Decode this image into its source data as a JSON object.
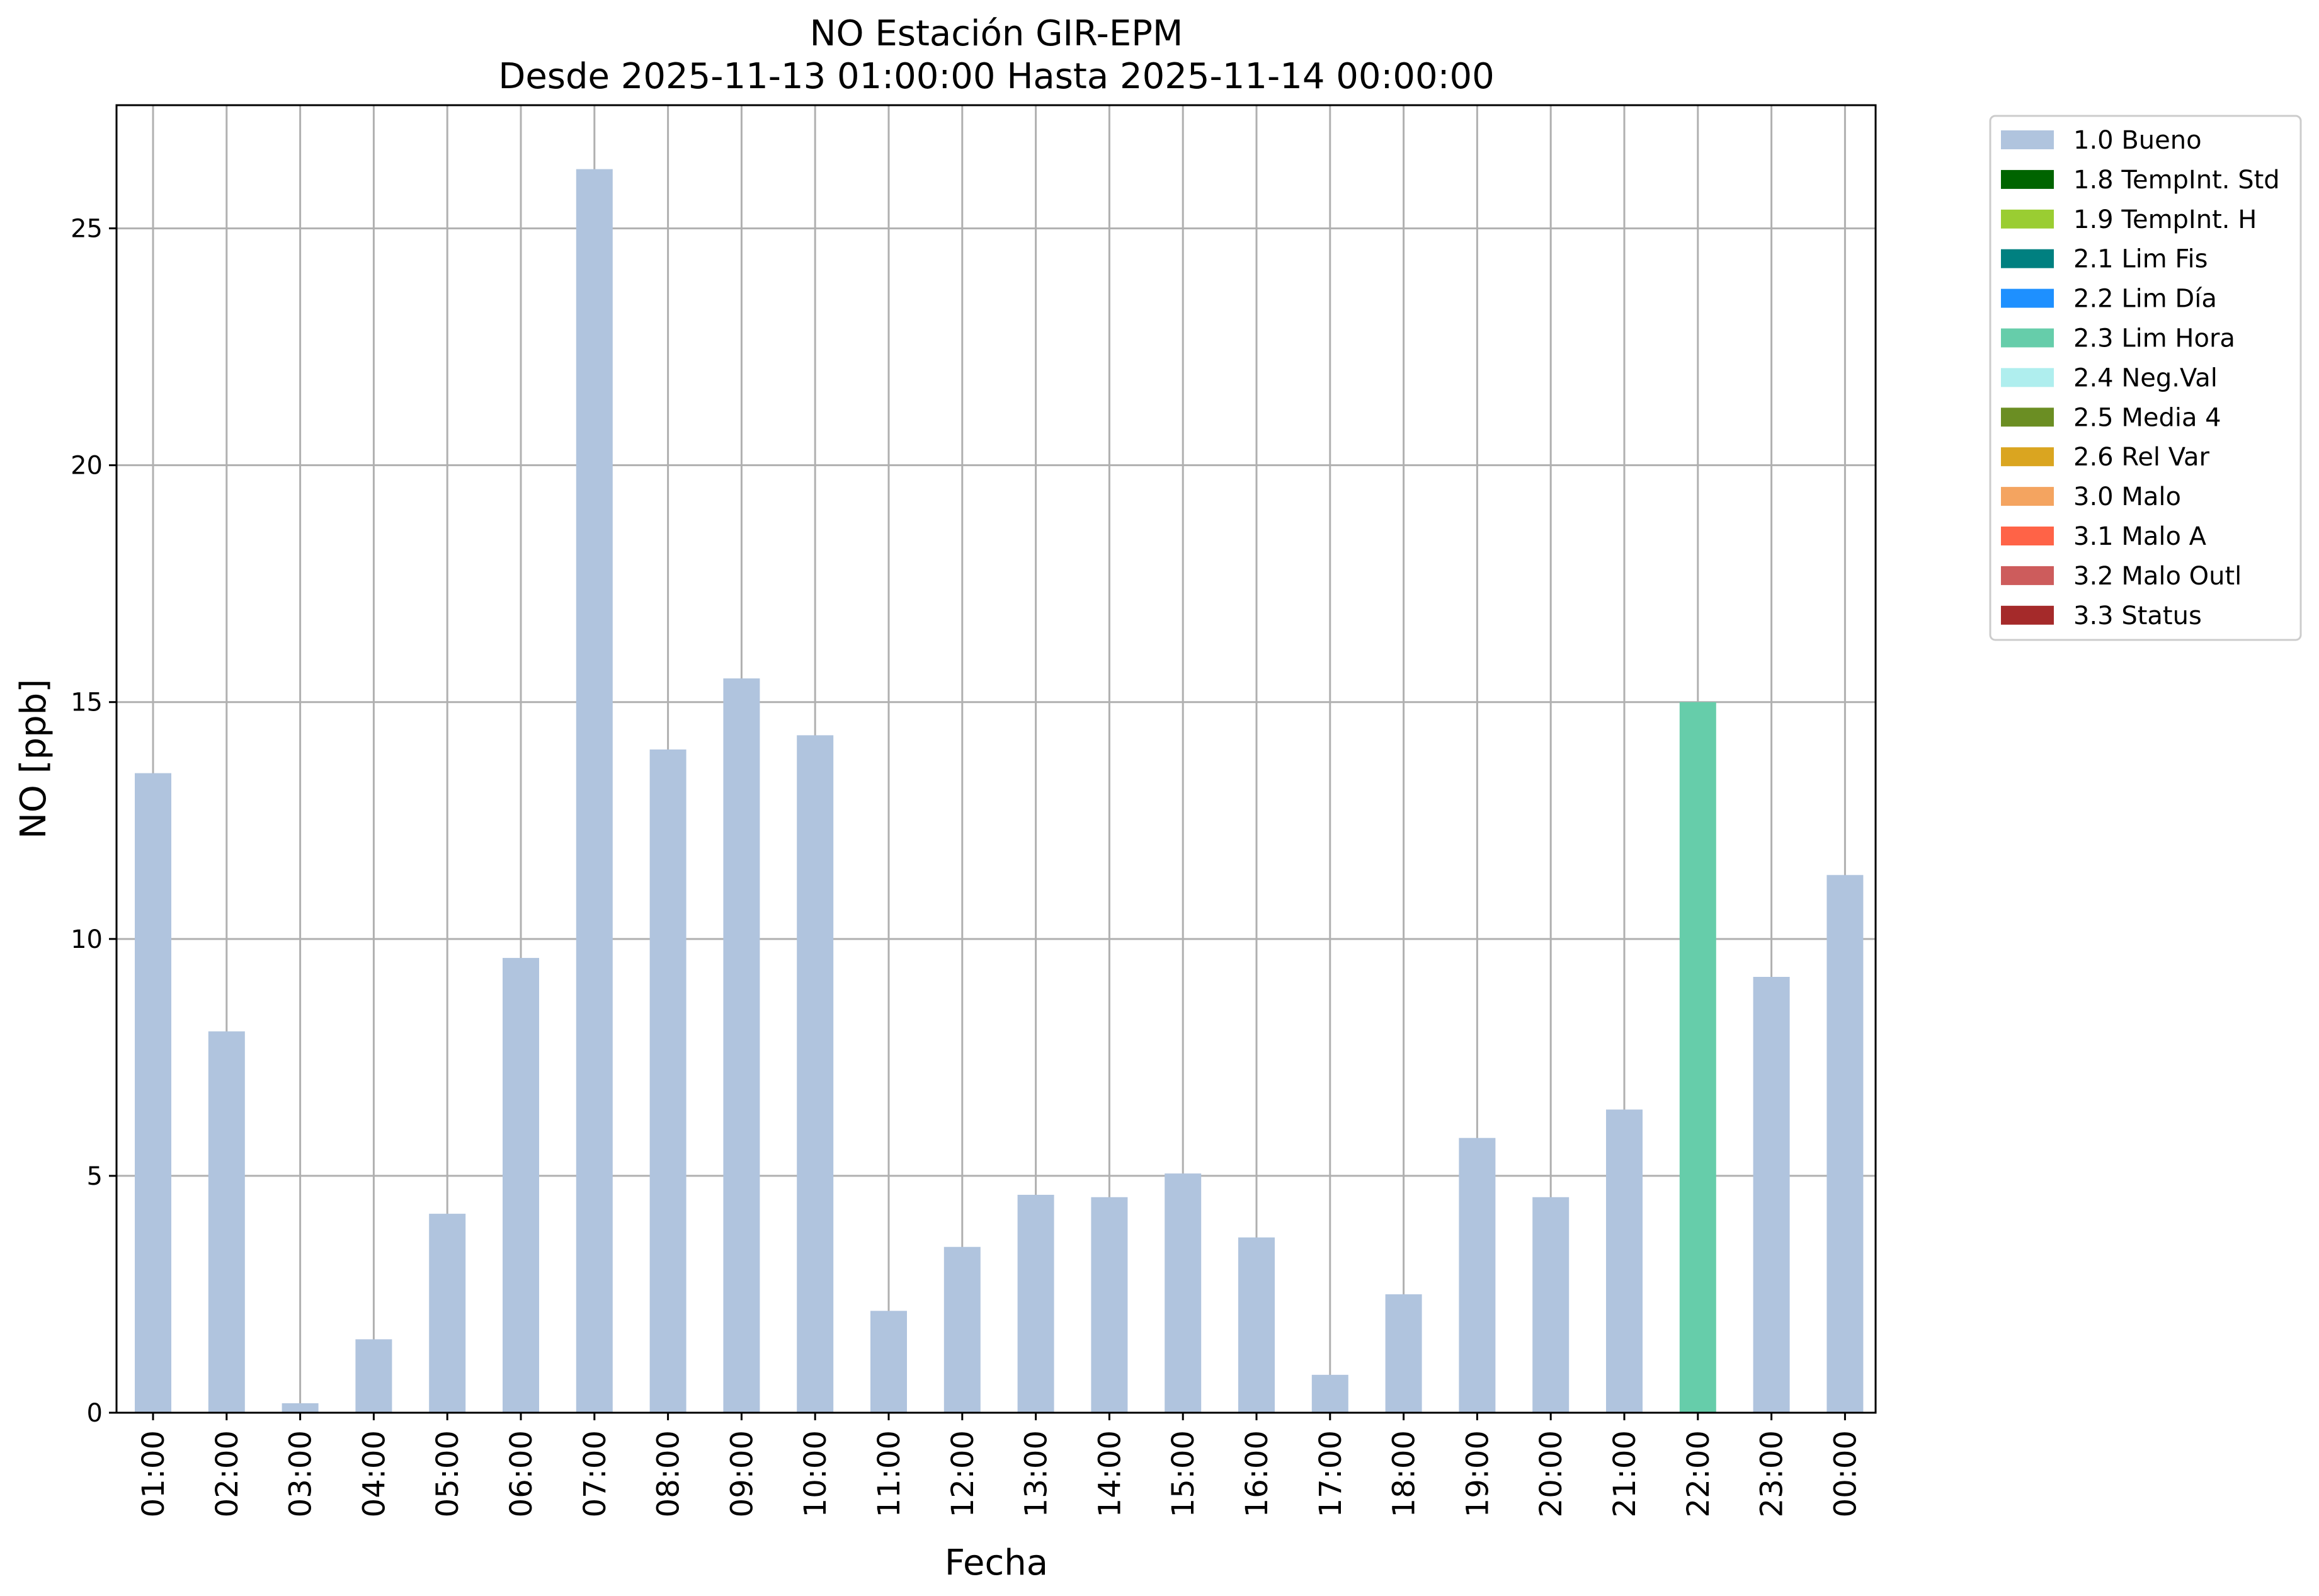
{
  "chart_data": {
    "type": "bar",
    "title_line1": "NO Estación GIR-EPM",
    "title_line2": "Desde 2025-11-13 01:00:00 Hasta 2025-11-14 00:00:00",
    "xlabel": "Fecha",
    "ylabel": "NO [ppb]",
    "ylim": [
      0,
      27.6
    ],
    "yticks": [
      "0",
      "5",
      "10",
      "15",
      "20",
      "25"
    ],
    "grid": true,
    "legend_position": "outside-top-right",
    "categories": [
      "01:00",
      "02:00",
      "03:00",
      "04:00",
      "05:00",
      "06:00",
      "07:00",
      "08:00",
      "09:00",
      "10:00",
      "11:00",
      "12:00",
      "13:00",
      "14:00",
      "15:00",
      "16:00",
      "17:00",
      "18:00",
      "19:00",
      "20:00",
      "21:00",
      "22:00",
      "23:00",
      "00:00"
    ],
    "values": [
      13.5,
      8.05,
      0.2,
      1.55,
      4.2,
      9.6,
      26.25,
      14.0,
      15.5,
      14.3,
      2.15,
      3.5,
      4.6,
      4.55,
      5.05,
      3.7,
      0.8,
      2.5,
      5.8,
      4.55,
      6.4,
      15.0,
      9.2,
      11.35
    ],
    "flags": [
      "1.0 Bueno",
      "1.0 Bueno",
      "1.0 Bueno",
      "1.0 Bueno",
      "1.0 Bueno",
      "1.0 Bueno",
      "1.0 Bueno",
      "1.0 Bueno",
      "1.0 Bueno",
      "1.0 Bueno",
      "1.0 Bueno",
      "1.0 Bueno",
      "1.0 Bueno",
      "1.0 Bueno",
      "1.0 Bueno",
      "1.0 Bueno",
      "1.0 Bueno",
      "1.0 Bueno",
      "1.0 Bueno",
      "1.0 Bueno",
      "1.0 Bueno",
      "2.3 Lim Hora",
      "1.0 Bueno",
      "1.0 Bueno"
    ],
    "legend": [
      {
        "label": "1.0 Bueno",
        "color": "#b0c4de"
      },
      {
        "label": "1.8 TempInt. Std",
        "color": "#006400"
      },
      {
        "label": "1.9 TempInt. H",
        "color": "#9acd32"
      },
      {
        "label": "2.1 Lim Fis",
        "color": "#008080"
      },
      {
        "label": "2.2 Lim Día",
        "color": "#1e90ff"
      },
      {
        "label": "2.3 Lim Hora",
        "color": "#66cdaa"
      },
      {
        "label": "2.4 Neg.Val",
        "color": "#afeeee"
      },
      {
        "label": "2.5 Media 4",
        "color": "#6b8e23"
      },
      {
        "label": "2.6 Rel Var",
        "color": "#daa520"
      },
      {
        "label": "3.0 Malo",
        "color": "#f4a460"
      },
      {
        "label": "3.1 Malo A",
        "color": "#ff6347"
      },
      {
        "label": "3.2 Malo Outl",
        "color": "#cd5c5c"
      },
      {
        "label": "3.3 Status",
        "color": "#a52a2a"
      }
    ]
  }
}
